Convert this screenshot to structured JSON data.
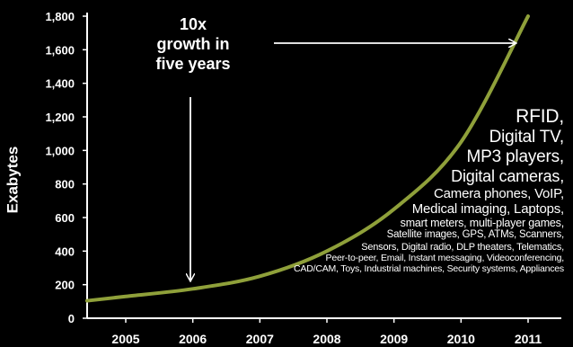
{
  "chart_data": {
    "type": "line",
    "title": "",
    "xlabel": "",
    "ylabel": "Exabytes",
    "categories": [
      "2005",
      "2006",
      "2007",
      "2008",
      "2009",
      "2010",
      "2011"
    ],
    "series": [
      {
        "values": [
          130,
          175,
          250,
          400,
          650,
          1050,
          1800
        ]
      }
    ],
    "ylim": [
      0,
      1800
    ],
    "yticks": [
      "0",
      "200",
      "400",
      "600",
      "800",
      "1,000",
      "1,200",
      "1,400",
      "1,600",
      "1,800"
    ],
    "grid": false,
    "line_color": "#8fa03a",
    "annotations": {
      "growth": [
        "10x",
        "growth in",
        "five years"
      ],
      "sources": [
        "RFID,",
        "Digital TV,",
        "MP3 players,",
        "Digital cameras,",
        "Camera phones, VoIP,",
        "Medical imaging, Laptops,",
        "smart meters, multi-player games,",
        "Satellite images, GPS, ATMs, Scanners,",
        "Sensors, Digital radio, DLP theaters, Telematics,",
        "Peer-to-peer, Email, Instant messaging, Videoconferencing,",
        "CAD/CAM, Toys, Industrial machines, Security systems, Appliances"
      ]
    }
  }
}
